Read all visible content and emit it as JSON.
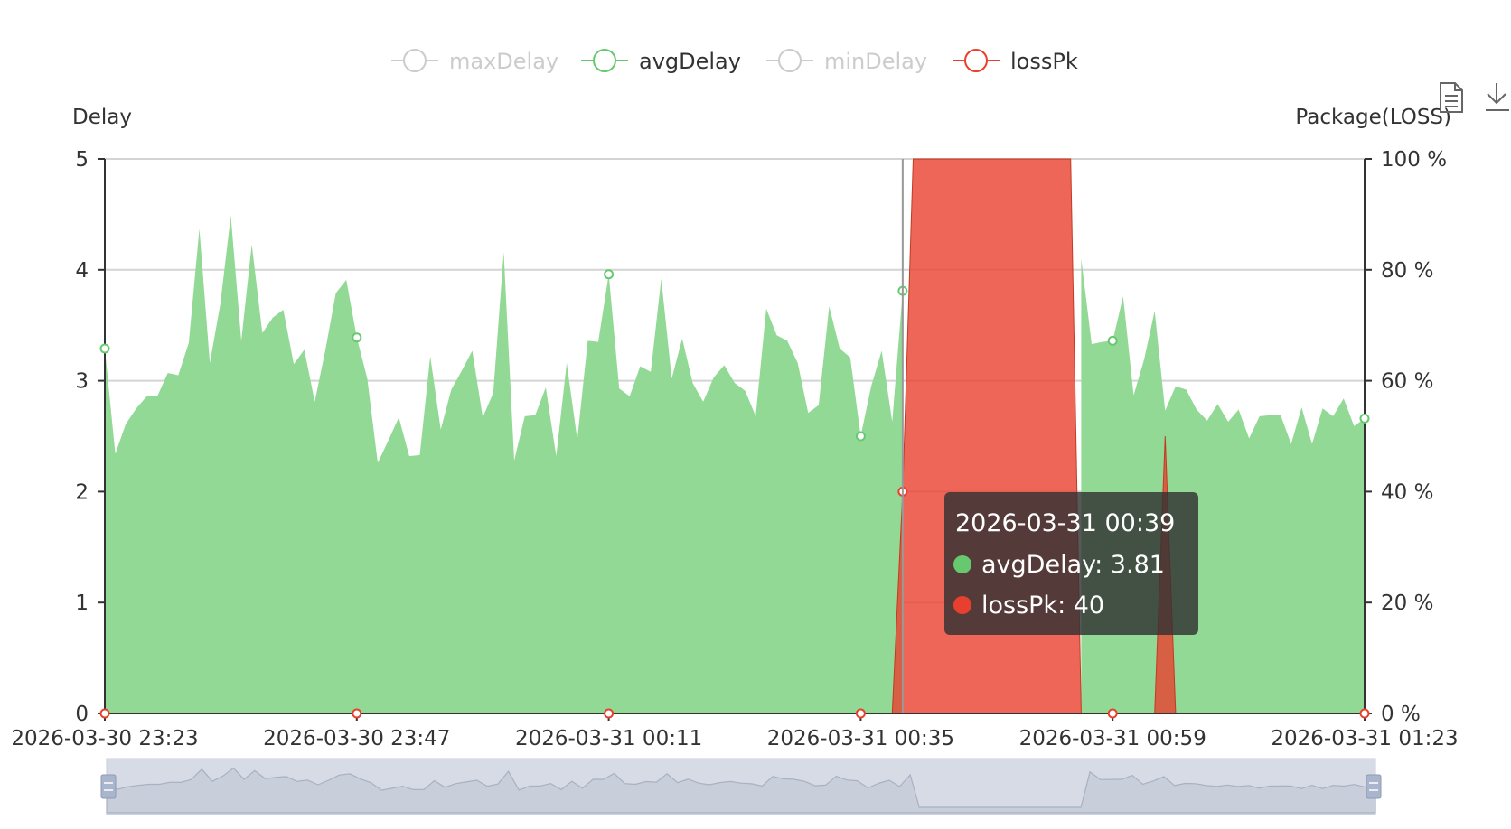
{
  "toolbox": {
    "icons": [
      "data-view-icon",
      "save-image-icon"
    ]
  },
  "chart_data": {
    "type": "area",
    "legend": [
      {
        "name": "maxDelay",
        "color": "#cccccc",
        "active": false
      },
      {
        "name": "avgDelay",
        "color": "#67c96f",
        "active": true
      },
      {
        "name": "minDelay",
        "color": "#cccccc",
        "active": false
      },
      {
        "name": "lossPk",
        "color": "#e8402e",
        "active": true
      }
    ],
    "ylabel": "Delay",
    "y2label": "Package(LOSS)",
    "ylim": [
      0,
      5
    ],
    "y2lim": [
      0,
      100
    ],
    "y_ticks": [
      "0",
      "1",
      "2",
      "3",
      "4",
      "5"
    ],
    "y2_ticks": [
      "0 %",
      "20 %",
      "40 %",
      "60 %",
      "80 %",
      "100 %"
    ],
    "xlim": [
      "2026-03-30 23:23",
      "2026-03-31 01:23"
    ],
    "x_ticks": [
      "2026-03-30 23:23",
      "2026-03-30 23:47",
      "2026-03-31 00:11",
      "2026-03-31 00:35",
      "2026-03-31 00:59",
      "2026-03-31 01:23"
    ],
    "grid": true,
    "series": [
      {
        "name": "avgDelay",
        "color": "#67c96f",
        "fill": "#92d995",
        "axis": "left",
        "points": [
          [
            "2026-03-30 23:23",
            3.29
          ],
          [
            "2026-03-30 23:24",
            2.34
          ],
          [
            "2026-03-30 23:25",
            2.61
          ],
          [
            "2026-03-30 23:26",
            2.75
          ],
          [
            "2026-03-30 23:27",
            2.86
          ],
          [
            "2026-03-30 23:28",
            2.86
          ],
          [
            "2026-03-30 23:29",
            3.07
          ],
          [
            "2026-03-30 23:30",
            3.05
          ],
          [
            "2026-03-30 23:31",
            3.34
          ],
          [
            "2026-03-30 23:32",
            4.37
          ],
          [
            "2026-03-30 23:33",
            3.16
          ],
          [
            "2026-03-30 23:34",
            3.69
          ],
          [
            "2026-03-30 23:35",
            4.49
          ],
          [
            "2026-03-30 23:36",
            3.36
          ],
          [
            "2026-03-30 23:37",
            4.23
          ],
          [
            "2026-03-30 23:38",
            3.43
          ],
          [
            "2026-03-30 23:39",
            3.57
          ],
          [
            "2026-03-30 23:40",
            3.64
          ],
          [
            "2026-03-30 23:41",
            3.15
          ],
          [
            "2026-03-30 23:42",
            3.28
          ],
          [
            "2026-03-30 23:43",
            2.81
          ],
          [
            "2026-03-30 23:44",
            3.27
          ],
          [
            "2026-03-30 23:45",
            3.79
          ],
          [
            "2026-03-30 23:46",
            3.91
          ],
          [
            "2026-03-30 23:47",
            3.39
          ],
          [
            "2026-03-30 23:48",
            3.02
          ],
          [
            "2026-03-30 23:49",
            2.26
          ],
          [
            "2026-03-30 23:50",
            2.46
          ],
          [
            "2026-03-30 23:51",
            2.67
          ],
          [
            "2026-03-30 23:52",
            2.32
          ],
          [
            "2026-03-30 23:53",
            2.33
          ],
          [
            "2026-03-30 23:54",
            3.22
          ],
          [
            "2026-03-30 23:55",
            2.56
          ],
          [
            "2026-03-30 23:56",
            2.92
          ],
          [
            "2026-03-30 23:57",
            3.09
          ],
          [
            "2026-03-30 23:58",
            3.27
          ],
          [
            "2026-03-30 23:59",
            2.67
          ],
          [
            "2026-03-31 00:00",
            2.89
          ],
          [
            "2026-03-31 00:01",
            4.16
          ],
          [
            "2026-03-31 00:02",
            2.28
          ],
          [
            "2026-03-31 00:03",
            2.68
          ],
          [
            "2026-03-31 00:04",
            2.69
          ],
          [
            "2026-03-31 00:05",
            2.94
          ],
          [
            "2026-03-31 00:06",
            2.32
          ],
          [
            "2026-03-31 00:07",
            3.16
          ],
          [
            "2026-03-31 00:08",
            2.47
          ],
          [
            "2026-03-31 00:09",
            3.36
          ],
          [
            "2026-03-31 00:10",
            3.35
          ],
          [
            "2026-03-31 00:11",
            3.96
          ],
          [
            "2026-03-31 00:12",
            2.93
          ],
          [
            "2026-03-31 00:13",
            2.86
          ],
          [
            "2026-03-31 00:14",
            3.13
          ],
          [
            "2026-03-31 00:15",
            3.08
          ],
          [
            "2026-03-31 00:16",
            3.92
          ],
          [
            "2026-03-31 00:17",
            3.02
          ],
          [
            "2026-03-31 00:18",
            3.38
          ],
          [
            "2026-03-31 00:19",
            2.98
          ],
          [
            "2026-03-31 00:20",
            2.81
          ],
          [
            "2026-03-31 00:21",
            3.03
          ],
          [
            "2026-03-31 00:22",
            3.14
          ],
          [
            "2026-03-31 00:23",
            2.98
          ],
          [
            "2026-03-31 00:24",
            2.91
          ],
          [
            "2026-03-31 00:25",
            2.68
          ],
          [
            "2026-03-31 00:26",
            3.65
          ],
          [
            "2026-03-31 00:27",
            3.41
          ],
          [
            "2026-03-31 00:28",
            3.36
          ],
          [
            "2026-03-31 00:29",
            3.16
          ],
          [
            "2026-03-31 00:30",
            2.71
          ],
          [
            "2026-03-31 00:31",
            2.78
          ],
          [
            "2026-03-31 00:32",
            3.67
          ],
          [
            "2026-03-31 00:33",
            3.29
          ],
          [
            "2026-03-31 00:34",
            3.21
          ],
          [
            "2026-03-31 00:35",
            2.5
          ],
          [
            "2026-03-31 00:36",
            2.95
          ],
          [
            "2026-03-31 00:37",
            3.27
          ],
          [
            "2026-03-31 00:38",
            2.63
          ],
          [
            "2026-03-31 00:39",
            3.81
          ],
          [
            "2026-03-31 00:56",
            4.1
          ],
          [
            "2026-03-31 00:57",
            3.33
          ],
          [
            "2026-03-31 00:58",
            3.35
          ],
          [
            "2026-03-31 00:59",
            3.36
          ],
          [
            "2026-03-31 01:00",
            3.76
          ],
          [
            "2026-03-31 01:01",
            2.87
          ],
          [
            "2026-03-31 01:02",
            3.19
          ],
          [
            "2026-03-31 01:03",
            3.63
          ],
          [
            "2026-03-31 01:04",
            2.73
          ],
          [
            "2026-03-31 01:05",
            2.95
          ],
          [
            "2026-03-31 01:06",
            2.92
          ],
          [
            "2026-03-31 01:07",
            2.74
          ],
          [
            "2026-03-31 01:08",
            2.64
          ],
          [
            "2026-03-31 01:09",
            2.79
          ],
          [
            "2026-03-31 01:10",
            2.63
          ],
          [
            "2026-03-31 01:11",
            2.74
          ],
          [
            "2026-03-31 01:12",
            2.48
          ],
          [
            "2026-03-31 01:13",
            2.68
          ],
          [
            "2026-03-31 01:14",
            2.69
          ],
          [
            "2026-03-31 01:15",
            2.69
          ],
          [
            "2026-03-31 01:16",
            2.43
          ],
          [
            "2026-03-31 01:17",
            2.76
          ],
          [
            "2026-03-31 01:18",
            2.43
          ],
          [
            "2026-03-31 01:19",
            2.75
          ],
          [
            "2026-03-31 01:20",
            2.68
          ],
          [
            "2026-03-31 01:21",
            2.84
          ],
          [
            "2026-03-31 01:22",
            2.59
          ],
          [
            "2026-03-31 01:23",
            2.66
          ]
        ]
      },
      {
        "name": "lossPk",
        "color": "#e8402e",
        "fill": "#e8402e",
        "axis": "right",
        "points": [
          [
            "2026-03-30 23:23",
            0
          ],
          [
            "2026-03-31 00:38",
            0
          ],
          [
            "2026-03-31 00:39",
            40
          ],
          [
            "2026-03-31 00:40",
            100
          ],
          [
            "2026-03-31 00:55",
            100
          ],
          [
            "2026-03-31 00:56",
            0
          ],
          [
            "2026-03-31 01:03",
            0
          ],
          [
            "2026-03-31 01:04",
            50
          ],
          [
            "2026-03-31 01:05",
            0
          ],
          [
            "2026-03-31 01:23",
            0
          ]
        ]
      }
    ],
    "tooltip": {
      "title": "2026-03-31 00:39",
      "rows": [
        {
          "series": "avgDelay",
          "color": "#67c96f",
          "text": "avgDelay: 3.81"
        },
        {
          "series": "lossPk",
          "color": "#e8402e",
          "text": "lossPk: 40"
        }
      ]
    }
  }
}
